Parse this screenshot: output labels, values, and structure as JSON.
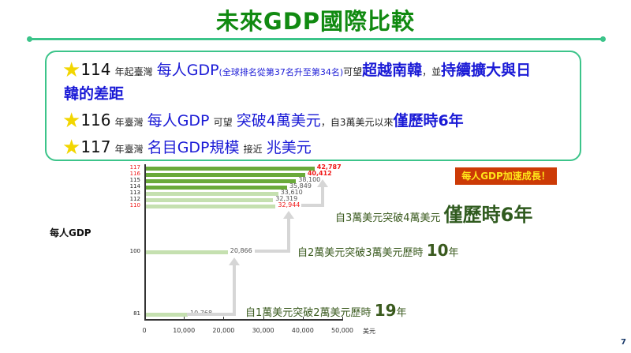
{
  "title": "未來GDP國際比較",
  "highlights": [
    {
      "year": "114",
      "parts": [
        "年起",
        "臺灣",
        "每人GDP",
        "(全球排名從第37名升至第34名)",
        "可望",
        "超越南韓",
        "，並",
        "持續擴大與日",
        "韓的差距"
      ]
    },
    {
      "year": "116",
      "parts": [
        "年臺灣",
        "每人GDP",
        "可望",
        "突破4萬美元",
        "，自3萬美元以來",
        "僅歷時6年"
      ]
    },
    {
      "year": "117",
      "parts": [
        "年臺灣",
        "名目GDP規模",
        "接近",
        "兆美元"
      ]
    }
  ],
  "badge": "每人GDP加速成長！",
  "y_axis_title": "每人GDP",
  "annotations": {
    "a1_prefix": "自3萬美元突破4萬美元",
    "a1_big": "僅歷時6年",
    "a2_prefix": "自2萬美元突破3萬美元歷時",
    "a2_num": "10",
    "a2_suffix": "年",
    "a3_prefix": "自1萬美元突破2萬美元歷時",
    "a3_num": "19",
    "a3_suffix": "年"
  },
  "page_number": "7",
  "chart_data": {
    "type": "bar",
    "orientation": "horizontal",
    "title": "",
    "ylabel": "每人GDP",
    "xlabel": "美元",
    "xlim": [
      0,
      50000
    ],
    "x_ticks": [
      "0",
      "10,000",
      "20,000",
      "30,000",
      "40,000",
      "50,000"
    ],
    "categories": [
      "117",
      "116",
      "115",
      "114",
      "113",
      "112",
      "110",
      "100",
      "81"
    ],
    "values": [
      42787,
      40412,
      38100,
      35849,
      33610,
      32319,
      32944,
      20866,
      10768
    ],
    "value_labels": [
      "42,787",
      "40,412",
      "38,100",
      "35,849",
      "33,610",
      "32,319",
      "32,944",
      "20,866",
      "10,768"
    ],
    "highlighted_categories": [
      "117",
      "116",
      "110"
    ],
    "colors": {
      "forecast": "#6aaa3a",
      "actual": "#c5e0b0",
      "highlight_text": "#f01818"
    }
  }
}
